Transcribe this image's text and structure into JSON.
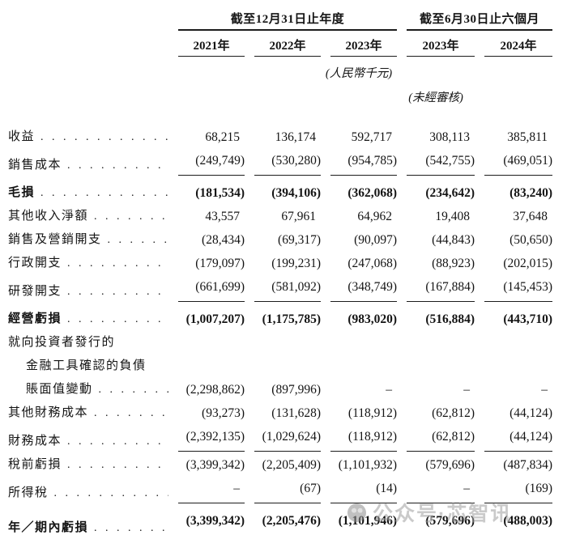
{
  "header": {
    "group1": {
      "label": "截至12月31日止年度",
      "columns": [
        "2021年",
        "2022年",
        "2023年"
      ]
    },
    "group2": {
      "label": "截至6月30日止六個月",
      "columns": [
        "2023年",
        "2024年"
      ]
    },
    "currency_note": "(人民幣千元)",
    "unaudited_note": "(未經審核)"
  },
  "rows": [
    {
      "label": "收益",
      "dots": true,
      "bold": false,
      "indent": 0,
      "rule": "none",
      "spaced": false,
      "values": [
        "68,215",
        "136,174",
        "592,717",
        "308,113",
        "385,811"
      ]
    },
    {
      "label": "銷售成本",
      "dots": true,
      "bold": false,
      "indent": 0,
      "rule": "single",
      "spaced": false,
      "values": [
        "(249,749)",
        "(530,280)",
        "(954,785)",
        "(542,755)",
        "(469,051)"
      ]
    },
    {
      "label": "毛損",
      "dots": true,
      "bold": true,
      "indent": 0,
      "rule": "none",
      "spaced": true,
      "values": [
        "(181,534)",
        "(394,106)",
        "(362,068)",
        "(234,642)",
        "(83,240)"
      ]
    },
    {
      "label": "其他收入淨額",
      "dots": true,
      "bold": false,
      "indent": 0,
      "rule": "none",
      "spaced": false,
      "values": [
        "43,557",
        "67,961",
        "64,962",
        "19,408",
        "37,648"
      ]
    },
    {
      "label": "銷售及營銷開支",
      "dots": true,
      "bold": false,
      "indent": 0,
      "rule": "none",
      "spaced": false,
      "values": [
        "(28,434)",
        "(69,317)",
        "(90,097)",
        "(44,843)",
        "(50,650)"
      ]
    },
    {
      "label": "行政開支",
      "dots": true,
      "bold": false,
      "indent": 0,
      "rule": "none",
      "spaced": false,
      "values": [
        "(179,097)",
        "(199,231)",
        "(247,068)",
        "(88,923)",
        "(202,015)"
      ]
    },
    {
      "label": "研發開支",
      "dots": true,
      "bold": false,
      "indent": 0,
      "rule": "single",
      "spaced": false,
      "values": [
        "(661,699)",
        "(581,092)",
        "(348,749)",
        "(167,884)",
        "(145,453)"
      ]
    },
    {
      "label": "經營虧損",
      "dots": true,
      "bold": true,
      "indent": 0,
      "rule": "none",
      "spaced": true,
      "values": [
        "(1,007,207)",
        "(1,175,785)",
        "(983,020)",
        "(516,884)",
        "(443,710)"
      ]
    },
    {
      "label": "就向投資者發行的",
      "dots": false,
      "bold": false,
      "indent": 0,
      "rule": "none",
      "spaced": false,
      "values": []
    },
    {
      "label": "金融工具確認的負債",
      "dots": false,
      "bold": false,
      "indent": 1,
      "rule": "none",
      "spaced": false,
      "values": []
    },
    {
      "label": "賬面值變動",
      "dots": true,
      "bold": false,
      "indent": 1,
      "rule": "none",
      "spaced": false,
      "values": [
        "(2,298,862)",
        "(897,996)",
        "–",
        "–",
        "–"
      ]
    },
    {
      "label": "其他財務成本",
      "dots": true,
      "bold": false,
      "indent": 0,
      "rule": "none",
      "spaced": false,
      "values": [
        "(93,273)",
        "(131,628)",
        "(118,912)",
        "(62,812)",
        "(44,124)"
      ]
    },
    {
      "label": "財務成本",
      "dots": true,
      "bold": false,
      "indent": 0,
      "rule": "single",
      "spaced": false,
      "values": [
        "(2,392,135)",
        "(1,029,624)",
        "(118,912)",
        "(62,812)",
        "(44,124)"
      ]
    },
    {
      "label": "稅前虧損",
      "dots": true,
      "bold": false,
      "indent": 0,
      "rule": "none",
      "spaced": false,
      "values": [
        "(3,399,342)",
        "(2,205,409)",
        "(1,101,932)",
        "(579,696)",
        "(487,834)"
      ]
    },
    {
      "label": "所得稅",
      "dots": true,
      "bold": false,
      "indent": 0,
      "rule": "single",
      "spaced": false,
      "values": [
        "–",
        "(67)",
        "(14)",
        "–",
        "(169)"
      ]
    },
    {
      "label": "年／期內虧損",
      "dots": true,
      "bold": true,
      "indent": 0,
      "rule": "double",
      "spaced": true,
      "values": [
        "(3,399,342)",
        "(2,205,476)",
        "(1,101,946)",
        "(579,696)",
        "(488,003)"
      ]
    }
  ],
  "watermark": {
    "text": "公众号·芯智讯"
  }
}
